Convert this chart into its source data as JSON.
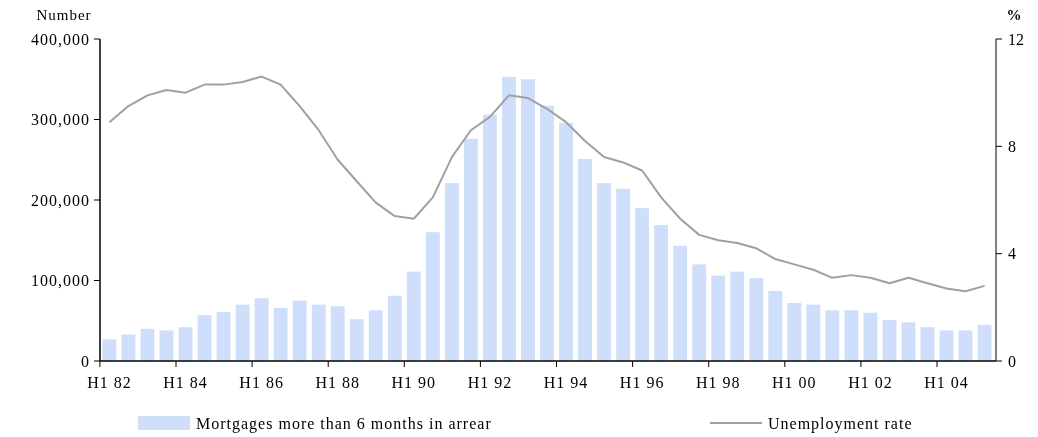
{
  "chart_data": {
    "type": "bar",
    "ylabel": "Number",
    "y2label": "%",
    "categories": [
      "H1 82",
      null,
      null,
      null,
      "H1 84",
      null,
      null,
      null,
      "H1 86",
      null,
      null,
      null,
      "H1 88",
      null,
      null,
      null,
      "H1 90",
      null,
      null,
      null,
      "H1 92",
      null,
      null,
      null,
      "H1 94",
      null,
      null,
      null,
      "H1 96",
      null,
      null,
      null,
      "H1 98",
      null,
      null,
      null,
      "H1 00",
      null,
      null,
      null,
      "H1 02",
      null,
      null,
      null,
      "H1 04",
      null,
      null
    ],
    "series": [
      {
        "name": "Mortgages more than 6 months in arrear",
        "color": "#cfdffb",
        "values": [
          27000,
          33000,
          40000,
          38000,
          42000,
          57000,
          61000,
          70000,
          78000,
          66000,
          75000,
          70000,
          68000,
          52000,
          63000,
          81000,
          111000,
          160000,
          221000,
          276000,
          306000,
          353000,
          350000,
          317000,
          296000,
          251000,
          221000,
          214000,
          190000,
          169000,
          143000,
          120000,
          106000,
          111000,
          103000,
          87000,
          72000,
          70000,
          63000,
          63000,
          60000,
          51000,
          48000,
          42000,
          38000,
          38000,
          45000
        ]
      },
      {
        "name": "Unemployment rate",
        "type": "line",
        "axis": "y2",
        "color": "#a0a0a0",
        "values": [
          8.9,
          9.5,
          9.9,
          10.1,
          10.0,
          10.3,
          10.3,
          10.4,
          10.6,
          10.3,
          9.5,
          8.6,
          7.5,
          6.7,
          5.9,
          5.4,
          5.3,
          6.1,
          7.6,
          8.6,
          9.1,
          9.9,
          9.8,
          9.4,
          8.9,
          8.2,
          7.6,
          7.4,
          7.1,
          6.1,
          5.3,
          4.7,
          4.5,
          4.4,
          4.2,
          3.8,
          3.6,
          3.4,
          3.1,
          3.2,
          3.1,
          2.9,
          3.1,
          2.9,
          2.7,
          2.6,
          2.8
        ]
      }
    ],
    "ylim": [
      0,
      400000
    ],
    "yticks": [
      0,
      {
        "value": 100000,
        "label": "100,000"
      },
      {
        "value": 200000,
        "label": "200,000"
      },
      {
        "value": 300000,
        "label": "300,000"
      },
      {
        "value": 400000,
        "label": "400,000"
      }
    ],
    "y2lim": [
      0,
      12
    ],
    "y2ticks": [
      0,
      4,
      8,
      12
    ],
    "grid": false,
    "legend": "bottom"
  }
}
